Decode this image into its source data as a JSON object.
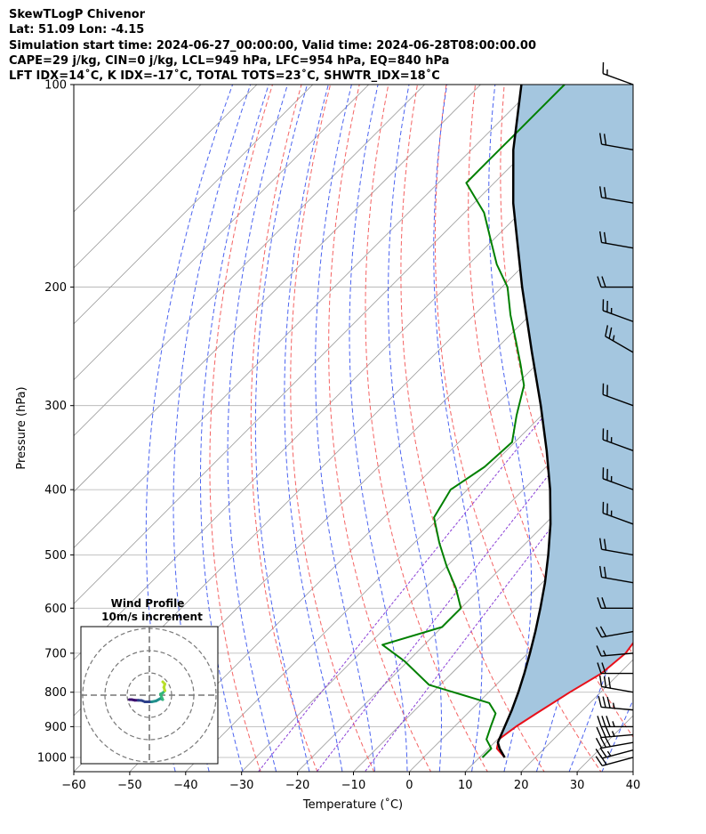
{
  "header": {
    "line1": "SkewTLogP Chivenor",
    "line2": "Lat: 51.09   Lon: -4.15",
    "line3": "Simulation start time: 2024-06-27_00:00:00, Valid time: 2024-06-28T08:00:00.00",
    "line4": "CAPE=29 j/kg, CIN=0 j/kg, LCL=949 hPa, LFC=954 hPa, EQ=840 hPa",
    "line5": "LFT IDX=14˚C, K IDX=-17˚C, TOTAL TOTS=23˚C, SHWTR_IDX=18˚C"
  },
  "colors": {
    "temperature": "#e8101a",
    "dewpoint": "#008000",
    "parcel": "#000000",
    "cape_fill": "#a4c6df",
    "dry_adiabat": "#f46363",
    "moist_adiabat": "#4b63f0",
    "mixing_ratio": "#8a3fd6",
    "isotherm": "#9a9a9a",
    "isobar": "#b0b0b0",
    "hodo_colors": [
      "#3b0f6f",
      "#2c3f8a",
      "#21908c",
      "#35b779",
      "#b8de29"
    ]
  },
  "chart_data": {
    "type": "line",
    "title": "",
    "xlabel": "Temperature (˚C)",
    "ylabel": "Pressure (hPa)",
    "xlim": [
      -60,
      40
    ],
    "ylim": [
      1050,
      100
    ],
    "y_scale": "log",
    "skew": true,
    "grid": true,
    "x_ticks": [
      -60,
      -50,
      -40,
      -30,
      -20,
      -10,
      0,
      10,
      20,
      30,
      40
    ],
    "x_tick_labels": [
      "−60",
      "−50",
      "−40",
      "−30",
      "−20",
      "−10",
      "0",
      "10",
      "20",
      "30",
      "40"
    ],
    "y_ticks": [
      100,
      200,
      300,
      400,
      500,
      600,
      700,
      800,
      900,
      1000
    ],
    "y_tick_labels": [
      "100",
      "200",
      "300",
      "400",
      "500",
      "600",
      "700",
      "800",
      "900",
      "1000"
    ],
    "series": [
      {
        "key": "temperature",
        "p": [
          1000,
          970,
          940,
          900,
          860,
          800,
          750,
          700,
          650,
          600,
          560,
          520,
          480,
          440,
          400,
          360,
          330,
          300,
          260,
          240,
          225,
          210,
          195,
          180,
          165,
          150,
          140,
          130,
          120,
          110,
          100
        ],
        "t": [
          14.5,
          11.5,
          10.2,
          11.0,
          12.3,
          14.5,
          16.8,
          17.5,
          16.5,
          14.0,
          10.5,
          6.5,
          2.5,
          -2.0,
          -6.5,
          -10.5,
          -14.5,
          -19.0,
          -26.5,
          -31.5,
          -33.0,
          -32.5,
          -31.8,
          -31.0,
          -30.5,
          -30.2,
          -28.0,
          -23.0,
          -17.5,
          -15.0,
          -15.0
        ]
      },
      {
        "key": "dewpoint",
        "p": [
          1000,
          970,
          940,
          900,
          860,
          830,
          780,
          720,
          680,
          640,
          600,
          560,
          520,
          480,
          440,
          400,
          370,
          340,
          310,
          280,
          260,
          240,
          220,
          200,
          185,
          170,
          155,
          140,
          130,
          120,
          110,
          100
        ],
        "t": [
          10.5,
          10.5,
          8.0,
          6.5,
          5.0,
          2.0,
          -12.0,
          -20.5,
          -27.5,
          -20.0,
          -20.0,
          -24.5,
          -30.0,
          -35.5,
          -41.0,
          -43.0,
          -41.0,
          -40.5,
          -44.5,
          -48.5,
          -53.0,
          -58.0,
          -63.5,
          -69.0,
          -75.0,
          -80.5,
          -86.5,
          -95.0,
          -95.0,
          -95.0,
          -95.0,
          -95.0
        ]
      },
      {
        "key": "parcel",
        "p": [
          1000,
          970,
          950,
          900,
          850,
          800,
          750,
          700,
          650,
          600,
          550,
          500,
          450,
          400,
          350,
          300,
          250,
          200,
          150,
          125,
          100
        ],
        "t": [
          14.5,
          12.0,
          10.6,
          9.0,
          7.3,
          5.3,
          3.0,
          0.4,
          -2.5,
          -5.8,
          -9.5,
          -13.9,
          -19.0,
          -25.2,
          -32.8,
          -41.9,
          -53.0,
          -66.4,
          -83.0,
          -92.5,
          -102.7
        ]
      }
    ],
    "wind_barbs": {
      "p": [
        1000,
        975,
        950,
        925,
        900,
        850,
        800,
        750,
        700,
        650,
        600,
        550,
        500,
        450,
        400,
        350,
        300,
        250,
        225,
        200,
        175,
        150,
        125,
        100
      ],
      "speed_kt": [
        20,
        25,
        30,
        35,
        35,
        35,
        30,
        20,
        15,
        20,
        20,
        20,
        20,
        25,
        25,
        25,
        20,
        25,
        25,
        20,
        20,
        20,
        20,
        15
      ],
      "dir_deg": [
        255,
        255,
        260,
        265,
        270,
        275,
        280,
        270,
        265,
        260,
        270,
        280,
        280,
        290,
        290,
        290,
        290,
        300,
        290,
        270,
        280,
        280,
        280,
        290
      ]
    },
    "hodograph": {
      "title": "Wind Profile",
      "subtitle": "10m/s increment",
      "u": [
        -9.0,
        -8.0,
        -6.5,
        -5.0,
        -3.5,
        -2.0,
        1.0,
        3.0,
        5.0,
        6.0,
        5.0,
        6.0,
        7.0,
        6.5,
        7.0,
        6.0
      ],
      "v": [
        -2.0,
        -2.0,
        -2.3,
        -2.3,
        -2.4,
        -3.0,
        -3.0,
        -2.6,
        -1.5,
        -2.0,
        0.5,
        1.0,
        2.0,
        3.5,
        5.0,
        6.0
      ]
    }
  }
}
